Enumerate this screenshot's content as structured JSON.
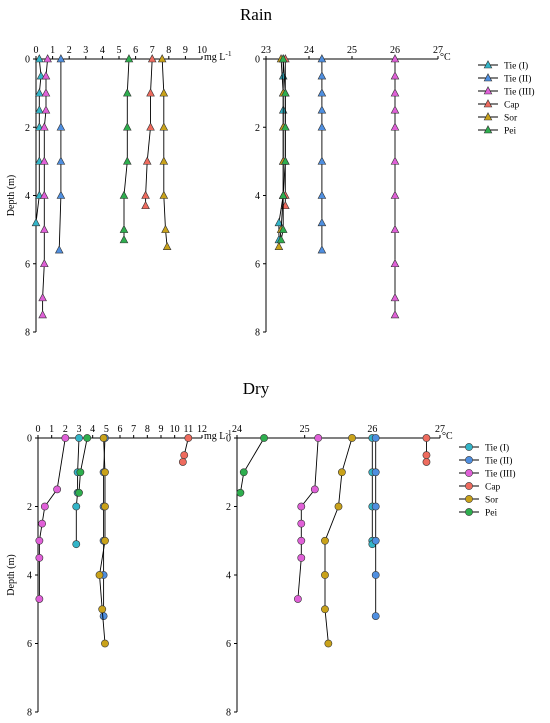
{
  "sections": [
    {
      "title": "Rain"
    },
    {
      "title": "Dry"
    }
  ],
  "chart_data": [
    {
      "type": "line",
      "panel": "rain-concentration",
      "season": "Rain",
      "marker": "triangle",
      "x_unit": "mg L",
      "x_unit_sup": "-1",
      "ylabel": "Depth (m)",
      "xlim": [
        0,
        10
      ],
      "ylim": [
        0,
        8
      ],
      "y_inverted": true,
      "x_ticks": [
        0,
        1,
        2,
        3,
        4,
        5,
        6,
        7,
        8,
        9,
        10
      ],
      "y_ticks": [
        0,
        2,
        4,
        6,
        8
      ],
      "legend": false,
      "series": [
        {
          "name": "Tie (I)",
          "color": "#33b5c8",
          "points": [
            [
              0.2,
              0
            ],
            [
              0.3,
              0.5
            ],
            [
              0.2,
              1
            ],
            [
              0.2,
              1.5
            ],
            [
              0.2,
              2
            ],
            [
              0.2,
              3
            ],
            [
              0.2,
              4
            ],
            [
              0.0,
              4.8
            ]
          ]
        },
        {
          "name": "Tie (II)",
          "color": "#4f8fe0",
          "points": [
            [
              1.5,
              0
            ],
            [
              1.5,
              2
            ],
            [
              1.5,
              3
            ],
            [
              1.5,
              4
            ],
            [
              1.4,
              5.6
            ]
          ]
        },
        {
          "name": "Tie (III)",
          "color": "#e060d8",
          "points": [
            [
              0.7,
              0
            ],
            [
              0.6,
              0.5
            ],
            [
              0.6,
              1
            ],
            [
              0.6,
              1.5
            ],
            [
              0.5,
              2
            ],
            [
              0.5,
              3
            ],
            [
              0.5,
              4
            ],
            [
              0.5,
              5
            ],
            [
              0.5,
              6
            ],
            [
              0.4,
              7
            ],
            [
              0.4,
              7.5
            ]
          ]
        },
        {
          "name": "Cap",
          "color": "#ee6b5e",
          "points": [
            [
              7.0,
              0
            ],
            [
              6.9,
              1
            ],
            [
              6.9,
              2
            ],
            [
              6.7,
              3
            ],
            [
              6.6,
              4
            ],
            [
              6.6,
              4.3
            ]
          ]
        },
        {
          "name": "Sor",
          "color": "#c9a21a",
          "points": [
            [
              7.6,
              0
            ],
            [
              7.7,
              1
            ],
            [
              7.7,
              2
            ],
            [
              7.7,
              3
            ],
            [
              7.7,
              4
            ],
            [
              7.8,
              5
            ],
            [
              7.9,
              5.5
            ]
          ]
        },
        {
          "name": "Pei",
          "color": "#2eae4e",
          "points": [
            [
              5.6,
              0
            ],
            [
              5.5,
              1
            ],
            [
              5.5,
              2
            ],
            [
              5.5,
              3
            ],
            [
              5.3,
              4
            ],
            [
              5.3,
              5
            ],
            [
              5.3,
              5.3
            ]
          ]
        }
      ]
    },
    {
      "type": "line",
      "panel": "rain-temperature",
      "season": "Rain",
      "marker": "triangle",
      "x_unit": "°C",
      "ylabel": "",
      "xlim": [
        23,
        27
      ],
      "ylim": [
        0,
        8
      ],
      "y_inverted": true,
      "x_ticks": [
        23,
        24,
        25,
        26,
        27
      ],
      "y_ticks": [
        0,
        2,
        4,
        6,
        8
      ],
      "legend": true,
      "legend_position": "top-right",
      "series": [
        {
          "name": "Tie (I)",
          "color": "#33b5c8",
          "points": [
            [
              23.4,
              0
            ],
            [
              23.4,
              0.5
            ],
            [
              23.4,
              1
            ],
            [
              23.4,
              1.5
            ],
            [
              23.4,
              2
            ],
            [
              23.4,
              3
            ],
            [
              23.4,
              4
            ],
            [
              23.3,
              4.8
            ],
            [
              23.3,
              5.3
            ]
          ]
        },
        {
          "name": "Tie (II)",
          "color": "#4f8fe0",
          "points": [
            [
              24.3,
              0
            ],
            [
              24.3,
              0.5
            ],
            [
              24.3,
              1
            ],
            [
              24.3,
              1.5
            ],
            [
              24.3,
              2
            ],
            [
              24.3,
              3
            ],
            [
              24.3,
              4
            ],
            [
              24.3,
              4.8
            ],
            [
              24.3,
              5.6
            ]
          ]
        },
        {
          "name": "Tie (III)",
          "color": "#e060d8",
          "points": [
            [
              26.0,
              0
            ],
            [
              26.0,
              0.5
            ],
            [
              26.0,
              1
            ],
            [
              26.0,
              1.5
            ],
            [
              26.0,
              2
            ],
            [
              26.0,
              3
            ],
            [
              26.0,
              4
            ],
            [
              26.0,
              5
            ],
            [
              26.0,
              6
            ],
            [
              26.0,
              7
            ],
            [
              26.0,
              7.5
            ]
          ]
        },
        {
          "name": "Cap",
          "color": "#ee6b5e",
          "points": [
            [
              23.45,
              0
            ],
            [
              23.45,
              1
            ],
            [
              23.45,
              2
            ],
            [
              23.45,
              3
            ],
            [
              23.45,
              4
            ],
            [
              23.45,
              4.3
            ]
          ]
        },
        {
          "name": "Sor",
          "color": "#c9a21a",
          "points": [
            [
              23.35,
              0
            ],
            [
              23.4,
              1
            ],
            [
              23.4,
              2
            ],
            [
              23.4,
              3
            ],
            [
              23.4,
              4
            ],
            [
              23.35,
              5
            ],
            [
              23.3,
              5.5
            ]
          ]
        },
        {
          "name": "Pei",
          "color": "#2eae4e",
          "points": [
            [
              23.4,
              0
            ],
            [
              23.45,
              1
            ],
            [
              23.45,
              2
            ],
            [
              23.45,
              3
            ],
            [
              23.4,
              4
            ],
            [
              23.4,
              5
            ],
            [
              23.35,
              5.3
            ]
          ]
        }
      ]
    },
    {
      "type": "line",
      "panel": "dry-concentration",
      "season": "Dry",
      "marker": "circle",
      "x_unit": "mg L",
      "x_unit_sup": "-1",
      "ylabel": "Depth (m)",
      "xlim": [
        0,
        12
      ],
      "ylim": [
        0,
        8
      ],
      "y_inverted": true,
      "x_ticks": [
        0,
        1,
        2,
        3,
        4,
        5,
        6,
        7,
        8,
        9,
        10,
        11,
        12
      ],
      "y_ticks": [
        0,
        2,
        4,
        6,
        8
      ],
      "legend": false,
      "series": [
        {
          "name": "Tie (I)",
          "color": "#33b5c8",
          "points": [
            [
              3.0,
              0
            ],
            [
              2.9,
              1
            ],
            [
              2.9,
              1.6
            ],
            [
              2.8,
              2
            ],
            [
              2.8,
              3.1
            ]
          ]
        },
        {
          "name": "Tie (II)",
          "color": "#4f8fe0",
          "points": [
            [
              4.9,
              0
            ],
            [
              4.8,
              1
            ],
            [
              4.8,
              2
            ],
            [
              4.8,
              3
            ],
            [
              4.8,
              4
            ],
            [
              4.8,
              5.2
            ]
          ]
        },
        {
          "name": "Tie (III)",
          "color": "#e060d8",
          "points": [
            [
              2.0,
              0
            ],
            [
              1.4,
              1.5
            ],
            [
              0.5,
              2
            ],
            [
              0.3,
              2.5
            ],
            [
              0.1,
              3
            ],
            [
              0.1,
              3.5
            ],
            [
              0.1,
              4.7
            ]
          ]
        },
        {
          "name": "Cap",
          "color": "#ee6b5e",
          "points": [
            [
              11.0,
              0
            ],
            [
              10.7,
              0.5
            ],
            [
              10.6,
              0.7
            ]
          ]
        },
        {
          "name": "Sor",
          "color": "#c9a21a",
          "points": [
            [
              4.8,
              0
            ],
            [
              4.9,
              1
            ],
            [
              4.9,
              2
            ],
            [
              4.9,
              3
            ],
            [
              4.5,
              4
            ],
            [
              4.7,
              5
            ],
            [
              4.9,
              6
            ]
          ]
        },
        {
          "name": "Pei",
          "color": "#2eae4e",
          "points": [
            [
              3.6,
              0
            ],
            [
              3.1,
              1
            ],
            [
              3.0,
              1.6
            ]
          ]
        }
      ]
    },
    {
      "type": "line",
      "panel": "dry-temperature",
      "season": "Dry",
      "marker": "circle",
      "x_unit": "°C",
      "ylabel": "",
      "xlim": [
        24,
        27
      ],
      "ylim": [
        0,
        8
      ],
      "y_inverted": true,
      "x_ticks": [
        24,
        25,
        26,
        27
      ],
      "y_ticks": [
        0,
        2,
        4,
        6,
        8
      ],
      "legend": true,
      "legend_position": "top-right",
      "series": [
        {
          "name": "Tie (I)",
          "color": "#33b5c8",
          "points": [
            [
              26.0,
              0
            ],
            [
              26.0,
              1
            ],
            [
              26.0,
              2
            ],
            [
              26.0,
              3
            ],
            [
              26.0,
              3.1
            ]
          ]
        },
        {
          "name": "Tie (II)",
          "color": "#4f8fe0",
          "points": [
            [
              26.05,
              0
            ],
            [
              26.05,
              1
            ],
            [
              26.05,
              2
            ],
            [
              26.05,
              3
            ],
            [
              26.05,
              4
            ],
            [
              26.05,
              5.2
            ]
          ]
        },
        {
          "name": "Tie (III)",
          "color": "#e060d8",
          "points": [
            [
              25.2,
              0
            ],
            [
              25.15,
              1.5
            ],
            [
              24.95,
              2
            ],
            [
              24.95,
              2.5
            ],
            [
              24.95,
              3
            ],
            [
              24.95,
              3.5
            ],
            [
              24.9,
              4.7
            ]
          ]
        },
        {
          "name": "Cap",
          "color": "#ee6b5e",
          "points": [
            [
              26.8,
              0
            ],
            [
              26.8,
              0.5
            ],
            [
              26.8,
              0.7
            ]
          ]
        },
        {
          "name": "Sor",
          "color": "#c9a21a",
          "points": [
            [
              25.7,
              0
            ],
            [
              25.55,
              1
            ],
            [
              25.5,
              2
            ],
            [
              25.3,
              3
            ],
            [
              25.3,
              4
            ],
            [
              25.3,
              5
            ],
            [
              25.35,
              6
            ]
          ]
        },
        {
          "name": "Pei",
          "color": "#2eae4e",
          "points": [
            [
              24.4,
              0
            ],
            [
              24.1,
              1
            ],
            [
              24.05,
              1.6
            ]
          ]
        }
      ]
    }
  ]
}
